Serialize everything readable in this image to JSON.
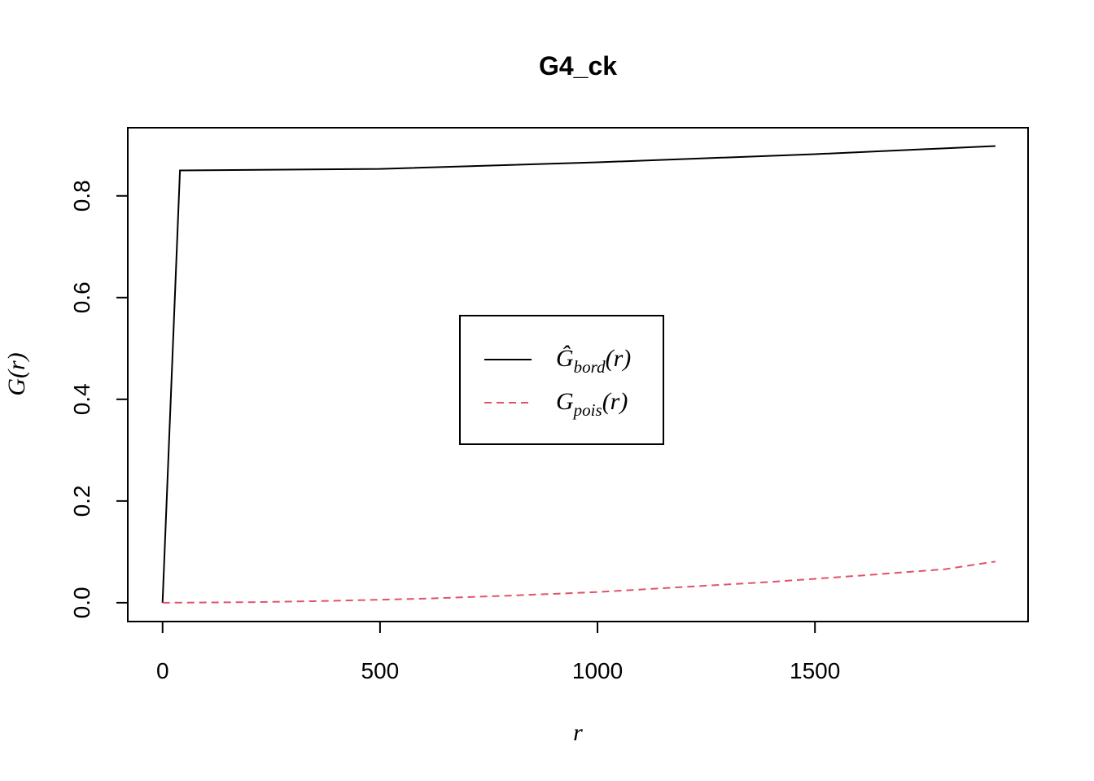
{
  "chart_data": {
    "type": "line",
    "title": "G4_ck",
    "xlabel": "r",
    "ylabel": "G(r)",
    "xlim": [
      -80,
      1990
    ],
    "ylim": [
      -0.037,
      0.934
    ],
    "x_ticks": [
      0,
      500,
      1000,
      1500
    ],
    "x_tick_labels": [
      "0",
      "500",
      "1000",
      "1500"
    ],
    "y_ticks": [
      0.0,
      0.2,
      0.4,
      0.6,
      0.8
    ],
    "y_tick_labels": [
      "0.0",
      "0.2",
      "0.4",
      "0.6",
      "0.8"
    ],
    "grid": false,
    "legend_position": "center",
    "series": [
      {
        "name": "Ĝbord(r)",
        "legend_main": "Ĝ",
        "legend_sub": "bord",
        "legend_tail": "(r)",
        "color": "#000000",
        "dash": "solid",
        "x": [
          0,
          40,
          500,
          1000,
          1500,
          1915
        ],
        "y": [
          0.0,
          0.85,
          0.853,
          0.866,
          0.882,
          0.898
        ]
      },
      {
        "name": "Gpois(r)",
        "legend_main": "G",
        "legend_sub": "pois",
        "legend_tail": "(r)",
        "color": "#DF536B",
        "dash": "dashed",
        "x": [
          0,
          200,
          400,
          600,
          800,
          1000,
          1200,
          1400,
          1600,
          1800,
          1915
        ],
        "y": [
          0.0,
          0.001,
          0.004,
          0.008,
          0.014,
          0.021,
          0.031,
          0.041,
          0.053,
          0.066,
          0.081
        ]
      }
    ]
  }
}
